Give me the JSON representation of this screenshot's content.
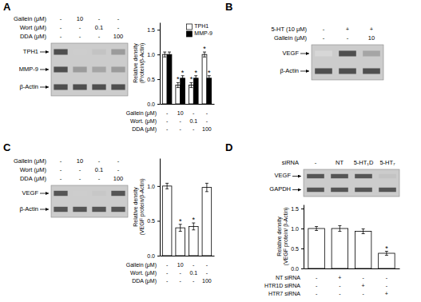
{
  "chart_data": [
    {
      "type": "blot",
      "title": "A",
      "rows": [
        "TPH1",
        "MMP-9",
        "β-Actin"
      ],
      "cells": [
        [
          0.88,
          0.25,
          0.3,
          0.5
        ],
        [
          0.88,
          0.5,
          0.45,
          0.5
        ],
        [
          0.88,
          0.88,
          0.88,
          0.88
        ]
      ],
      "color": "#cccccc",
      "condition_table": {
        "headers": [
          "Gallein (μM)",
          "Wort (μM)",
          "DDA (μM)"
        ],
        "cells": [
          [
            "-",
            "10",
            "-",
            "-"
          ],
          [
            "-",
            "-",
            "0.1",
            "-"
          ],
          [
            "-",
            "-",
            "-",
            "100"
          ]
        ]
      }
    },
    {
      "type": "bar",
      "categories": [
        null,
        null,
        null,
        null
      ],
      "series": [
        {
          "name": "TPH1",
          "color": "#ffffff",
          "values": [
            1.0,
            0.38,
            0.38,
            1.0
          ],
          "errors": [
            0.05,
            0.05,
            0.05,
            0.05
          ]
        },
        {
          "name": "MMP-9",
          "color": "#000000",
          "values": [
            1.0,
            0.52,
            0.52,
            0.52
          ],
          "errors": [
            0.05,
            0.05,
            0.05,
            0.05
          ]
        }
      ],
      "ylabel": "Relative density\n(Protein/β-Actin)",
      "ylim": [
        0,
        1.65
      ],
      "yticks": [
        {
          "value": 0,
          "label": "0.0"
        },
        0.5,
        {
          "value": 1,
          "label": "1.0"
        },
        1.5
      ],
      "legend": "upper right",
      "annotations": [
        {
          "text": "*",
          "series": 0,
          "index": 1
        },
        {
          "text": "*",
          "series": 0,
          "index": 2
        },
        {
          "text": "*",
          "series": 0,
          "index": 3
        },
        {
          "text": "*",
          "series": 1,
          "index": 1
        },
        {
          "text": "*",
          "series": 1,
          "index": 2
        },
        {
          "text": "*",
          "series": 1,
          "index": 3
        }
      ],
      "condition_table": {
        "headers": [
          "Gallein (μM)",
          "Wort. (μM)",
          "DDA (μM)"
        ],
        "cells": [
          [
            "-",
            "10",
            "-",
            "-"
          ],
          [
            "-",
            "-",
            "0.1",
            "-"
          ],
          [
            "-",
            "-",
            "-",
            "100"
          ]
        ]
      }
    },
    {
      "type": "blot",
      "title": "B",
      "rows": [
        "VEGF",
        "β-Actin"
      ],
      "cells": [
        [
          0.2,
          0.88,
          0.45
        ],
        [
          0.88,
          0.88,
          0.88
        ]
      ],
      "color": "#cccccc",
      "condition_table": {
        "headers": [
          "5-HT (10 μM)",
          "Gallein (μM)"
        ],
        "cells": [
          [
            "-",
            "+",
            "+"
          ],
          [
            "-",
            "-",
            "10"
          ]
        ]
      }
    },
    {
      "type": "blot",
      "title": "C",
      "rows": [
        "VEGF",
        "β-Actin"
      ],
      "cells": [
        [
          0.85,
          0.25,
          0.28,
          0.85
        ],
        [
          0.85,
          0.85,
          0.85,
          0.85
        ]
      ],
      "color": "#cccccc",
      "condition_table": {
        "headers": [
          "Gallein (μM)",
          "Wort (μM)",
          "DDA (μM)"
        ],
        "cells": [
          [
            "-",
            "10",
            "-",
            "-"
          ],
          [
            "-",
            "-",
            "0.1",
            "-"
          ],
          [
            "-",
            "-",
            "-",
            "100"
          ]
        ]
      }
    },
    {
      "type": "bar",
      "categories": [
        null,
        null,
        null,
        null
      ],
      "values": [
        1.0,
        0.4,
        0.42,
        0.98
      ],
      "errors": [
        0.04,
        0.05,
        0.05,
        0.06
      ],
      "color": "#ffffff",
      "ylabel": "Relative density\n(VEGF protein/β-Actin)",
      "ylim": [
        0,
        1.4
      ],
      "yticks": [
        {
          "value": 0,
          "label": "0.0"
        },
        0.5,
        {
          "value": 1,
          "label": "1.0"
        }
      ],
      "annotations": [
        {
          "text": "*",
          "index": 1
        },
        {
          "text": "*",
          "index": 2
        }
      ],
      "condition_table": {
        "headers": [
          "Gallein (μM)",
          "Wort. (μM)",
          "DDA (μM)"
        ],
        "cells": [
          [
            "-",
            "10",
            "-",
            "-"
          ],
          [
            "-",
            "-",
            "0.1",
            "-"
          ],
          [
            "-",
            "-",
            "-",
            "100"
          ]
        ]
      }
    },
    {
      "type": "blot",
      "title": "D",
      "rows": [
        "VEGF",
        "GAPDH"
      ],
      "cells": [
        [
          0.85,
          0.85,
          0.85,
          0.3
        ],
        [
          0.85,
          0.85,
          0.85,
          0.85
        ]
      ],
      "color": "#cccccc",
      "condition_table": {
        "headers": [
          "siRNA"
        ],
        "cells": [
          [
            "-",
            "NT",
            "5-HT₁D",
            "5-HT₇"
          ]
        ]
      }
    },
    {
      "type": "bar",
      "categories": [
        null,
        null,
        null,
        null
      ],
      "values": [
        1.0,
        1.0,
        0.93,
        0.38
      ],
      "errors": [
        0.05,
        0.07,
        0.06,
        0.05
      ],
      "color": "#ffffff",
      "ylabel": "Relative density\n(VEGF protein/ β-Actin)",
      "ylim": [
        0,
        1.6
      ],
      "yticks": [
        {
          "value": 0,
          "label": "0.0"
        },
        0.5,
        {
          "value": 1,
          "label": "1.0"
        },
        1.5
      ],
      "annotations": [
        {
          "text": "*",
          "index": 3
        }
      ],
      "condition_table": {
        "headers": [
          "NT siRNA",
          "HTR1D siRNA",
          "HTR7 siRNA"
        ],
        "cells": [
          [
            "-",
            "+",
            "-",
            "-"
          ],
          [
            "-",
            "-",
            "+",
            "-"
          ],
          [
            "-",
            "-",
            "-",
            "+"
          ]
        ]
      }
    }
  ]
}
